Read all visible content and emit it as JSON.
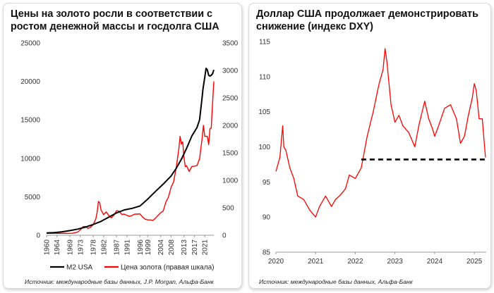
{
  "chart_data": [
    {
      "type": "line",
      "title": "Цены на золото росли в соответствии с ростом денежной массы и госдолга США",
      "title_lines": [
        "Цены на золото росли в соответствии с",
        "ростом денежной массы и госдолга США"
      ],
      "x_tick_labels": [
        "1960",
        "1964",
        "1969",
        "1973",
        "1978",
        "1982",
        "1987",
        "1991",
        "1996",
        "1999",
        "2004",
        "2008",
        "2013",
        "2017",
        "2021"
      ],
      "xlim": [
        1960,
        2024.5
      ],
      "y_left_ticks": [
        "0",
        "5000",
        "10000",
        "15000",
        "20000",
        "25000"
      ],
      "y_left_lim": [
        0,
        25000
      ],
      "y_right_ticks": [
        "0",
        "500",
        "1000",
        "1500",
        "2000",
        "2500",
        "3000",
        "3500"
      ],
      "y_right_lim": [
        0,
        3500
      ],
      "series": [
        {
          "name": "M2 USA",
          "axis": "left",
          "color": "#000000",
          "x": [
            1960,
            1963,
            1966,
            1969,
            1972,
            1975,
            1978,
            1981,
            1984,
            1987,
            1990,
            1993,
            1996,
            1999,
            2002,
            2005,
            2008,
            2010,
            2012,
            2014,
            2016,
            2018,
            2019,
            2020,
            2020.3,
            2021,
            2021.5,
            2022,
            2022.5,
            2023,
            2023.5,
            2024,
            2024.5
          ],
          "values": [
            300,
            350,
            450,
            600,
            800,
            1050,
            1400,
            1800,
            2350,
            2900,
            3300,
            3500,
            3800,
            4700,
            5700,
            6650,
            7700,
            8700,
            9900,
            11300,
            12900,
            14000,
            15000,
            18000,
            19000,
            20500,
            21700,
            21500,
            20800,
            20700,
            20800,
            21000,
            21500
          ]
        },
        {
          "name": "Цена золота (правая шкала)",
          "axis": "right",
          "color": "#ff0000",
          "x": [
            1960,
            1968,
            1970,
            1972,
            1973,
            1974,
            1975,
            1976,
            1977,
            1978,
            1979,
            1979.5,
            1980,
            1980.5,
            1981,
            1982,
            1983,
            1984,
            1985,
            1986,
            1987,
            1988,
            1989,
            1990,
            1991,
            1992,
            1993,
            1994,
            1995,
            1996,
            1997,
            1998,
            1999,
            2000,
            2001,
            2002,
            2003,
            2004,
            2005,
            2006,
            2007,
            2008,
            2009,
            2010,
            2011,
            2011.5,
            2012,
            2012.5,
            2013,
            2013.5,
            2014,
            2015,
            2016,
            2017,
            2018,
            2019,
            2020,
            2020.5,
            2021,
            2022,
            2022.5,
            2023,
            2023.5,
            2024,
            2024.5
          ],
          "values": [
            35,
            35,
            36,
            58,
            97,
            154,
            161,
            125,
            148,
            193,
            300,
            420,
            615,
            590,
            460,
            375,
            424,
            360,
            317,
            368,
            447,
            437,
            381,
            383,
            362,
            344,
            360,
            384,
            384,
            388,
            331,
            294,
            279,
            280,
            271,
            310,
            363,
            409,
            444,
            604,
            695,
            872,
            972,
            1225,
            1570,
            1800,
            1660,
            1700,
            1410,
            1250,
            1266,
            1160,
            1251,
            1257,
            1268,
            1392,
            1770,
            2000,
            1800,
            1800,
            1650,
            1940,
            1950,
            2400,
            2800
          ]
        }
      ],
      "legend": [
        {
          "label": "M2 USA",
          "color": "#000000"
        },
        {
          "label": "Цена золота (правая шкала)",
          "color": "#ff0000"
        }
      ],
      "source": "Источник: международные базы данных, J.P. Morgan, Альфа-Банк"
    },
    {
      "type": "line",
      "title": "Доллар США продолжает демонстрировать снижение (индекс DXY)",
      "title_lines": [
        "Доллар США продолжает демонстрировать",
        "снижение (индекс DXY)"
      ],
      "x_tick_labels": [
        "2020",
        "2021",
        "2022",
        "2023",
        "2024",
        "2025"
      ],
      "xlim": [
        2020,
        2025.3
      ],
      "y_ticks": [
        "85",
        "90",
        "95",
        "100",
        "105",
        "110",
        "115"
      ],
      "ylim": [
        85,
        115
      ],
      "series": [
        {
          "name": "DXY",
          "color": "#ff0000",
          "x": [
            2020,
            2020.1,
            2020.17,
            2020.2,
            2020.25,
            2020.35,
            2020.45,
            2020.55,
            2020.7,
            2020.85,
            2021,
            2021.1,
            2021.25,
            2021.4,
            2021.5,
            2021.6,
            2021.75,
            2021.85,
            2022,
            2022.15,
            2022.3,
            2022.45,
            2022.6,
            2022.7,
            2022.75,
            2022.8,
            2022.9,
            2023,
            2023.1,
            2023.2,
            2023.35,
            2023.5,
            2023.6,
            2023.75,
            2023.85,
            2023.95,
            2024,
            2024.1,
            2024.25,
            2024.4,
            2024.55,
            2024.65,
            2024.75,
            2024.85,
            2024.95,
            2025,
            2025.05,
            2025.12,
            2025.2,
            2025.28
          ],
          "values": [
            96.5,
            98.5,
            103.0,
            100.0,
            99.5,
            97.0,
            95.5,
            93.0,
            92.5,
            91.0,
            90.0,
            91.5,
            93.0,
            91.5,
            92.5,
            93.0,
            94.0,
            96.0,
            95.5,
            97.0,
            101.5,
            105.0,
            109.0,
            111.0,
            114.0,
            112.0,
            106.0,
            103.5,
            104.5,
            103.0,
            102.0,
            100.0,
            103.0,
            106.5,
            104.0,
            102.5,
            101.5,
            103.0,
            105.5,
            106.0,
            104.0,
            100.5,
            101.5,
            104.5,
            107.0,
            109.0,
            108.0,
            104.0,
            104.0,
            98.5
          ]
        }
      ],
      "reference_line": {
        "value": 98.2,
        "from_x": 2022.15,
        "to_x": 2025.3,
        "style": "dashed",
        "color": "#000000"
      },
      "source": "Источник: международные базы данных, Альфа-Банк"
    }
  ]
}
